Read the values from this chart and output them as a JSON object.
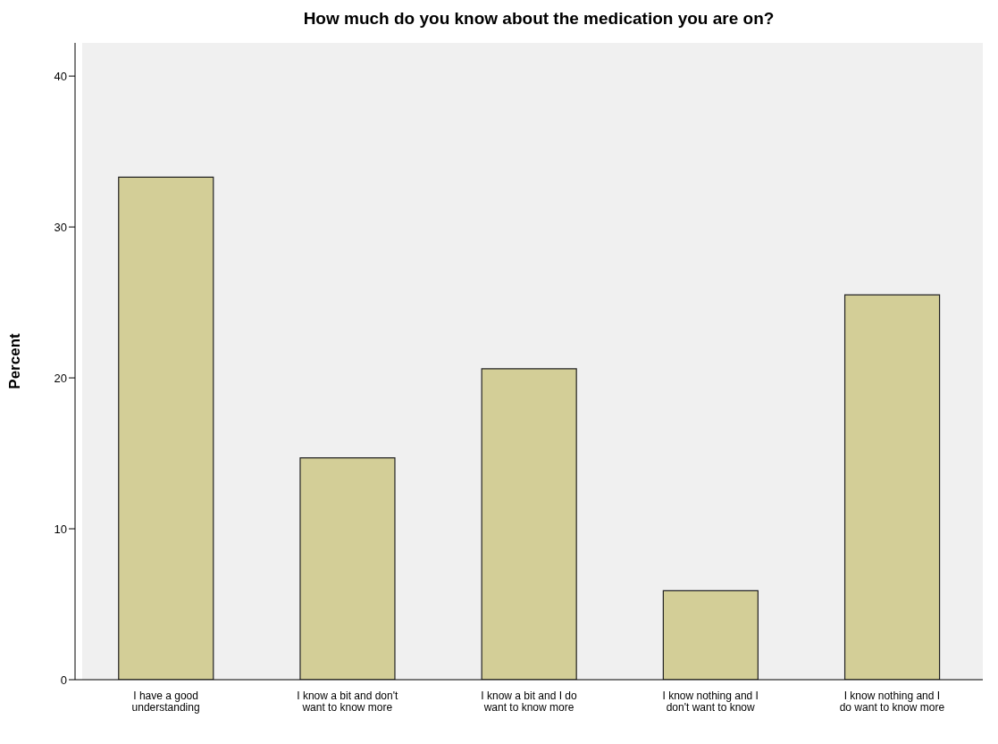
{
  "chart_data": {
    "type": "bar",
    "title": "How much do you know about the medication you are on?",
    "ylabel": "Percent",
    "categories": [
      "I have a good understanding",
      "I know a bit and don't want to know more",
      "I know a bit and I do want to know more",
      "I know nothing and I don't want to know",
      "I know nothing and I do want to know more"
    ],
    "values": [
      33.3,
      14.7,
      20.6,
      5.9,
      25.5
    ],
    "color": "#d3ce97",
    "ylim": [
      0,
      42.2
    ],
    "yticks": [
      0,
      10,
      20,
      30,
      40
    ],
    "grid": false,
    "legend": false
  }
}
